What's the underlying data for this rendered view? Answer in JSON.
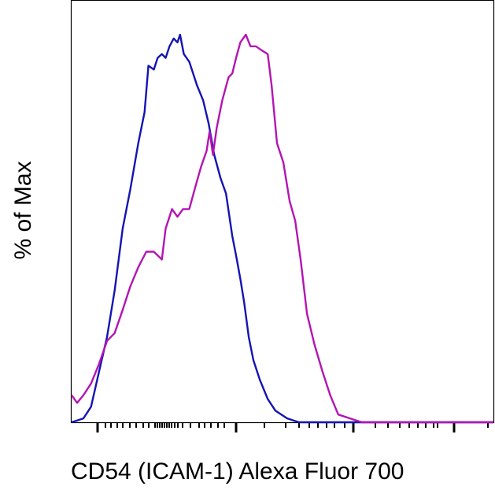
{
  "chart_data": {
    "type": "line",
    "title": "",
    "xlabel": "CD54 (ICAM-1) Alexa Fluor 700",
    "ylabel": "% of Max",
    "ylim": [
      0,
      100
    ],
    "xlim": [
      0,
      1000
    ],
    "x_scale": "biexponential",
    "grid": false,
    "legend": "none",
    "series": [
      {
        "color": "#1414b4",
        "points": [
          [
            0,
            0
          ],
          [
            28,
            1
          ],
          [
            46,
            4
          ],
          [
            65,
            13
          ],
          [
            84,
            22
          ],
          [
            102,
            34
          ],
          [
            121,
            50
          ],
          [
            139,
            60
          ],
          [
            158,
            72
          ],
          [
            173,
            80
          ],
          [
            182,
            92
          ],
          [
            195,
            91
          ],
          [
            204,
            94
          ],
          [
            214,
            95
          ],
          [
            223,
            94
          ],
          [
            232,
            97
          ],
          [
            242,
            99
          ],
          [
            251,
            98
          ],
          [
            257,
            100
          ],
          [
            266,
            95
          ],
          [
            279,
            93
          ],
          [
            288,
            90
          ],
          [
            297,
            87
          ],
          [
            312,
            83
          ],
          [
            325,
            77
          ],
          [
            338,
            69
          ],
          [
            353,
            63
          ],
          [
            366,
            59
          ],
          [
            381,
            48
          ],
          [
            390,
            43
          ],
          [
            400,
            37
          ],
          [
            409,
            31
          ],
          [
            420,
            22
          ],
          [
            431,
            16
          ],
          [
            446,
            11
          ],
          [
            465,
            6
          ],
          [
            483,
            3
          ],
          [
            511,
            1
          ],
          [
            539,
            0
          ],
          [
            1000,
            0
          ]
        ]
      },
      {
        "color": "#b414b4",
        "points": [
          [
            0,
            7
          ],
          [
            13,
            5
          ],
          [
            28,
            7
          ],
          [
            46,
            10
          ],
          [
            65,
            15
          ],
          [
            84,
            21
          ],
          [
            102,
            23
          ],
          [
            121,
            29
          ],
          [
            139,
            35
          ],
          [
            158,
            40
          ],
          [
            177,
            44
          ],
          [
            195,
            44
          ],
          [
            214,
            42
          ],
          [
            223,
            50
          ],
          [
            238,
            55
          ],
          [
            251,
            53
          ],
          [
            264,
            55
          ],
          [
            279,
            55
          ],
          [
            294,
            61
          ],
          [
            307,
            66
          ],
          [
            320,
            70
          ],
          [
            327,
            75
          ],
          [
            335,
            69
          ],
          [
            344,
            76
          ],
          [
            357,
            83
          ],
          [
            372,
            89
          ],
          [
            381,
            90
          ],
          [
            390,
            94
          ],
          [
            400,
            98
          ],
          [
            413,
            100
          ],
          [
            424,
            97
          ],
          [
            437,
            97
          ],
          [
            450,
            96
          ],
          [
            465,
            95
          ],
          [
            474,
            87
          ],
          [
            487,
            72
          ],
          [
            502,
            67
          ],
          [
            517,
            57
          ],
          [
            530,
            52
          ],
          [
            543,
            42
          ],
          [
            558,
            28
          ],
          [
            576,
            20
          ],
          [
            595,
            13
          ],
          [
            613,
            7
          ],
          [
            632,
            2
          ],
          [
            660,
            1
          ],
          [
            688,
            0
          ],
          [
            1000,
            0
          ]
        ]
      }
    ]
  }
}
